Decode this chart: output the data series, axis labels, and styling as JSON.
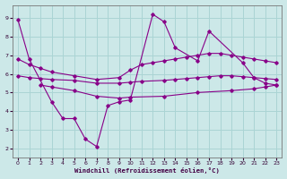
{
  "line_color": "#880088",
  "bg_color": "#cce8e8",
  "grid_color": "#aad4d4",
  "xlabel": "Windchill (Refroidissement éolien,°C)",
  "ylim": [
    1.5,
    9.7
  ],
  "xlim": [
    -0.5,
    23.5
  ],
  "yticks": [
    2,
    3,
    4,
    5,
    6,
    7,
    8,
    9
  ],
  "xticks": [
    0,
    1,
    2,
    3,
    4,
    5,
    6,
    7,
    8,
    9,
    10,
    11,
    12,
    13,
    14,
    15,
    16,
    17,
    18,
    19,
    20,
    21,
    22,
    23
  ],
  "series": [
    {
      "x": [
        0,
        1,
        3,
        4,
        5,
        6,
        7,
        8,
        9,
        10,
        12,
        13,
        14,
        16,
        17,
        20,
        21,
        22,
        23
      ],
      "y": [
        8.9,
        6.8,
        4.5,
        3.6,
        3.6,
        2.5,
        2.1,
        4.3,
        4.5,
        4.6,
        9.2,
        8.8,
        7.4,
        6.7,
        8.3,
        6.6,
        5.8,
        5.5,
        5.4
      ]
    },
    {
      "x": [
        0,
        1,
        2,
        3,
        5,
        7,
        9,
        10,
        11,
        12,
        13,
        14,
        15,
        16,
        17,
        18,
        19,
        20,
        21,
        22,
        23
      ],
      "y": [
        6.8,
        6.5,
        6.3,
        6.1,
        5.9,
        5.7,
        5.8,
        6.2,
        6.5,
        6.6,
        6.7,
        6.8,
        6.9,
        7.0,
        7.1,
        7.1,
        7.0,
        6.9,
        6.8,
        6.7,
        6.6
      ]
    },
    {
      "x": [
        0,
        1,
        2,
        3,
        5,
        7,
        9,
        10,
        11,
        13,
        14,
        15,
        16,
        17,
        18,
        19,
        20,
        21,
        22,
        23
      ],
      "y": [
        5.9,
        5.8,
        5.75,
        5.7,
        5.65,
        5.5,
        5.5,
        5.55,
        5.6,
        5.65,
        5.7,
        5.75,
        5.8,
        5.85,
        5.9,
        5.9,
        5.85,
        5.8,
        5.75,
        5.7
      ]
    },
    {
      "x": [
        2,
        3,
        5,
        7,
        9,
        10,
        13,
        16,
        19,
        21,
        22,
        23
      ],
      "y": [
        5.4,
        5.3,
        5.1,
        4.8,
        4.7,
        4.75,
        4.8,
        5.0,
        5.1,
        5.2,
        5.3,
        5.4
      ]
    }
  ]
}
